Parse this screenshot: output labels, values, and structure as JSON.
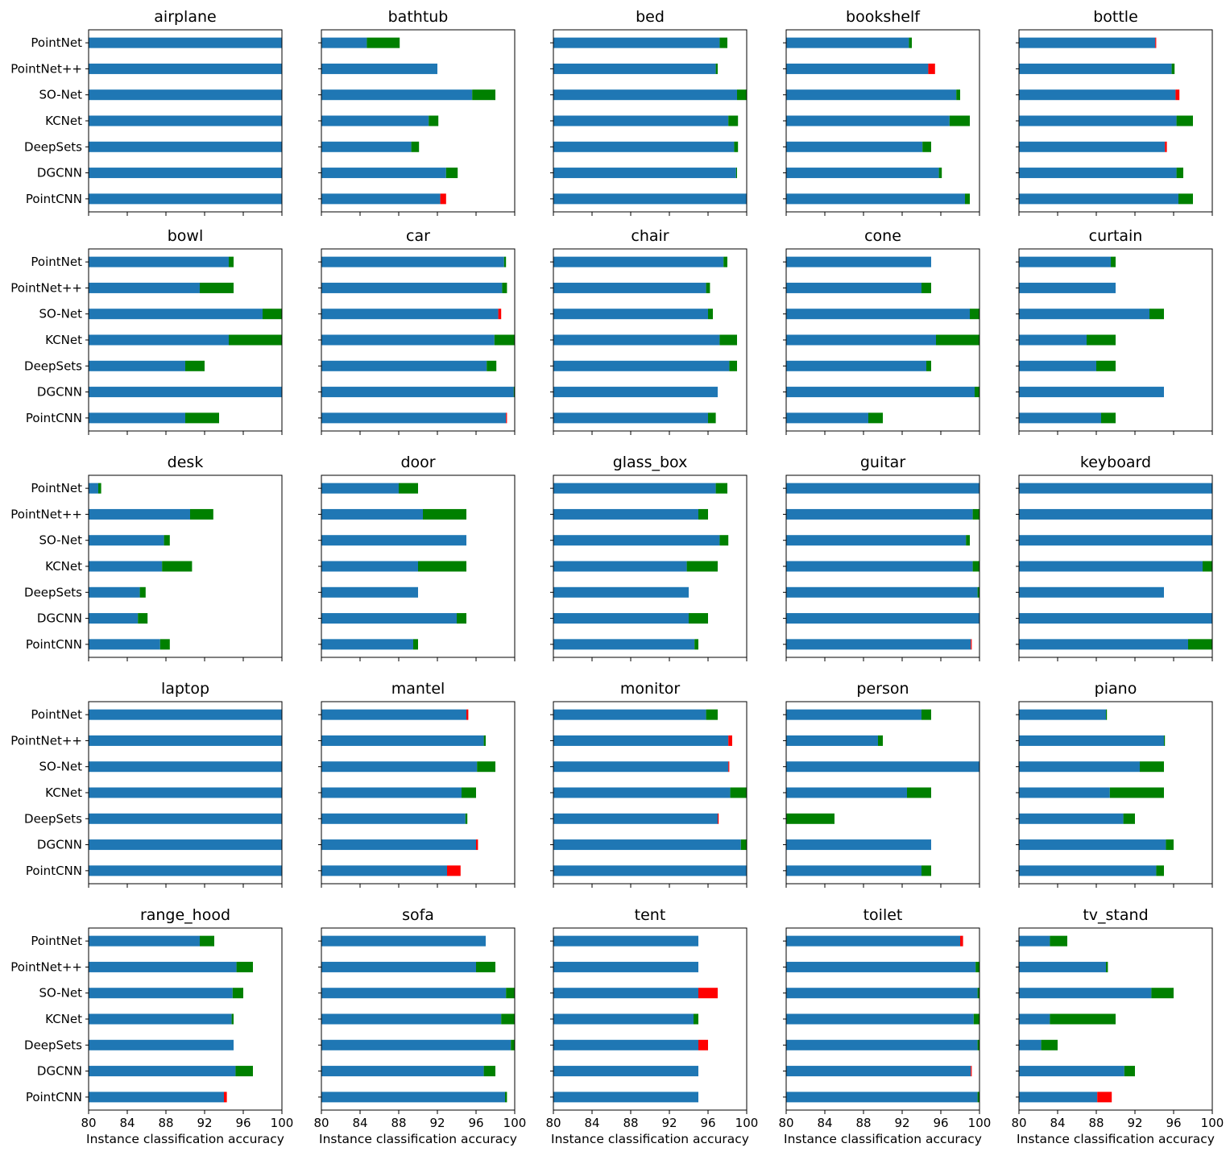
{
  "chart_data": {
    "type": "bar",
    "orientation": "horizontal",
    "stacked": true,
    "xlim": [
      80,
      100
    ],
    "xticks": [
      "80",
      "84",
      "88",
      "92",
      "96",
      "100"
    ],
    "xlabel": "Instance classification accuracy",
    "methods": [
      "PointNet",
      "PointNet++",
      "SO-Net",
      "KCNet",
      "DeepSets",
      "DGCNN",
      "PointCNN"
    ],
    "segment_colors": {
      "base": "#1f77b4",
      "gain": "#008000",
      "loss": "#ff0000"
    },
    "grid": false,
    "layout": "5x5 small multiples",
    "panels": [
      {
        "title": "airplane",
        "base": [
          100,
          100,
          100,
          100,
          100,
          100,
          100
        ],
        "delta": [
          0,
          0,
          0,
          0,
          0,
          0,
          0
        ]
      },
      {
        "title": "bathtub",
        "base": [
          84.7,
          92,
          95.6,
          91.1,
          89.3,
          92.9,
          92.3
        ],
        "delta": [
          3.4,
          0,
          2.4,
          1.0,
          0.8,
          1.2,
          -0.6
        ]
      },
      {
        "title": "bed",
        "base": [
          97.2,
          96.8,
          99.0,
          98.1,
          98.7,
          98.9,
          100
        ],
        "delta": [
          0.8,
          0.2,
          1.0,
          1.0,
          0.4,
          0.1,
          0
        ]
      },
      {
        "title": "bookshelf",
        "base": [
          92.7,
          94.7,
          97.6,
          96.9,
          94.1,
          95.8,
          98.5
        ],
        "delta": [
          0.3,
          -0.7,
          0.4,
          2.1,
          0.9,
          0.3,
          0.5
        ]
      },
      {
        "title": "bottle",
        "base": [
          94.1,
          95.8,
          96.2,
          96.3,
          95.1,
          96.3,
          96.5
        ],
        "delta": [
          -0.1,
          0.3,
          -0.4,
          1.7,
          -0.2,
          0.7,
          1.5
        ]
      },
      {
        "title": "bowl",
        "base": [
          94.5,
          91.5,
          98.0,
          94.5,
          90.0,
          100,
          90.0
        ],
        "delta": [
          0.5,
          3.5,
          2.0,
          5.5,
          2.0,
          0,
          3.5
        ]
      },
      {
        "title": "car",
        "base": [
          98.9,
          98.7,
          98.3,
          97.9,
          97.1,
          99.9,
          99.1
        ],
        "delta": [
          0.2,
          0.5,
          -0.3,
          2.1,
          1.0,
          0.1,
          -0.1
        ]
      },
      {
        "title": "chair",
        "base": [
          97.6,
          95.8,
          96.0,
          97.2,
          98.2,
          97.0,
          96.0
        ],
        "delta": [
          0.4,
          0.4,
          0.5,
          1.8,
          0.8,
          0,
          0.8
        ]
      },
      {
        "title": "cone",
        "base": [
          95.0,
          94.0,
          99.0,
          95.5,
          94.5,
          99.5,
          88.5
        ],
        "delta": [
          0,
          1.0,
          1.0,
          4.5,
          0.5,
          0.5,
          1.5
        ]
      },
      {
        "title": "curtain",
        "base": [
          89.5,
          90,
          93.5,
          87.0,
          88.0,
          95.0,
          88.5
        ],
        "delta": [
          0.5,
          0,
          1.5,
          3.0,
          2.0,
          0,
          1.5
        ]
      },
      {
        "title": "desk",
        "base": [
          81.0,
          90.5,
          87.8,
          87.6,
          85.3,
          85.1,
          87.4
        ],
        "delta": [
          0.3,
          2.4,
          0.6,
          3.1,
          0.6,
          1.0,
          1.0
        ]
      },
      {
        "title": "door",
        "base": [
          88.0,
          90.5,
          95.0,
          90.0,
          90.0,
          94.0,
          89.5
        ],
        "delta": [
          2.0,
          4.5,
          0,
          5.0,
          0,
          1.0,
          0.5
        ]
      },
      {
        "title": "glass_box",
        "base": [
          96.8,
          95.0,
          97.2,
          93.8,
          94.0,
          94.0,
          94.6
        ],
        "delta": [
          1.2,
          1.0,
          0.9,
          3.2,
          0,
          2.0,
          0.4
        ]
      },
      {
        "title": "guitar",
        "base": [
          100,
          99.3,
          98.6,
          99.3,
          99.8,
          100,
          99.1
        ],
        "delta": [
          0,
          0.7,
          0.4,
          0.7,
          0.2,
          0,
          -0.1
        ]
      },
      {
        "title": "keyboard",
        "base": [
          100,
          100,
          100,
          99.0,
          95.0,
          100,
          97.5
        ],
        "delta": [
          0,
          0,
          0,
          1.0,
          0,
          0,
          2.5
        ]
      },
      {
        "title": "laptop",
        "base": [
          100,
          100,
          100,
          100,
          100,
          100,
          100
        ],
        "delta": [
          0,
          0,
          0,
          0,
          0,
          0,
          0
        ]
      },
      {
        "title": "mantel",
        "base": [
          95.0,
          96.8,
          96.1,
          94.5,
          94.9,
          96.0,
          93.0
        ],
        "delta": [
          -0.2,
          0.2,
          1.9,
          1.5,
          0.2,
          -0.2,
          -1.4
        ]
      },
      {
        "title": "monitor",
        "base": [
          95.8,
          98.1,
          98.1,
          98.3,
          97.0,
          99.4,
          100
        ],
        "delta": [
          1.2,
          -0.4,
          -0.1,
          1.7,
          -0.1,
          0.6,
          0
        ]
      },
      {
        "title": "person",
        "base": [
          94.0,
          89.5,
          100,
          92.5,
          80,
          95.0,
          94.0
        ],
        "delta": [
          1.0,
          0.5,
          0,
          2.5,
          5.0,
          0,
          1.0
        ]
      },
      {
        "title": "piano",
        "base": [
          89.0,
          95.0,
          92.5,
          89.4,
          90.8,
          95.2,
          94.2
        ],
        "delta": [
          0.1,
          0.1,
          2.5,
          5.6,
          1.2,
          0.8,
          0.8
        ]
      },
      {
        "title": "range_hood",
        "base": [
          91.5,
          95.3,
          94.9,
          94.8,
          95.0,
          95.2,
          94.0
        ],
        "delta": [
          1.5,
          1.7,
          1.1,
          0.2,
          0,
          1.8,
          -0.3
        ]
      },
      {
        "title": "sofa",
        "base": [
          97.0,
          96.0,
          99.1,
          98.6,
          99.6,
          96.8,
          99.0
        ],
        "delta": [
          0,
          2.0,
          0.9,
          1.4,
          0.4,
          1.2,
          0.2
        ]
      },
      {
        "title": "tent",
        "base": [
          95.0,
          95.0,
          95.0,
          94.5,
          95.0,
          95.0,
          95.0
        ],
        "delta": [
          0,
          0,
          -2.0,
          0.5,
          -1.0,
          0,
          0
        ]
      },
      {
        "title": "toilet",
        "base": [
          98.0,
          99.6,
          99.8,
          99.4,
          99.8,
          99.1,
          99.8
        ],
        "delta": [
          -0.3,
          0.4,
          0.2,
          0.6,
          0.2,
          -0.1,
          0.2
        ]
      },
      {
        "title": "tv_stand",
        "base": [
          83.2,
          89.0,
          93.7,
          83.2,
          82.3,
          90.9,
          88.1
        ],
        "delta": [
          1.8,
          0.2,
          2.3,
          6.8,
          1.7,
          1.1,
          -1.5
        ]
      }
    ]
  }
}
